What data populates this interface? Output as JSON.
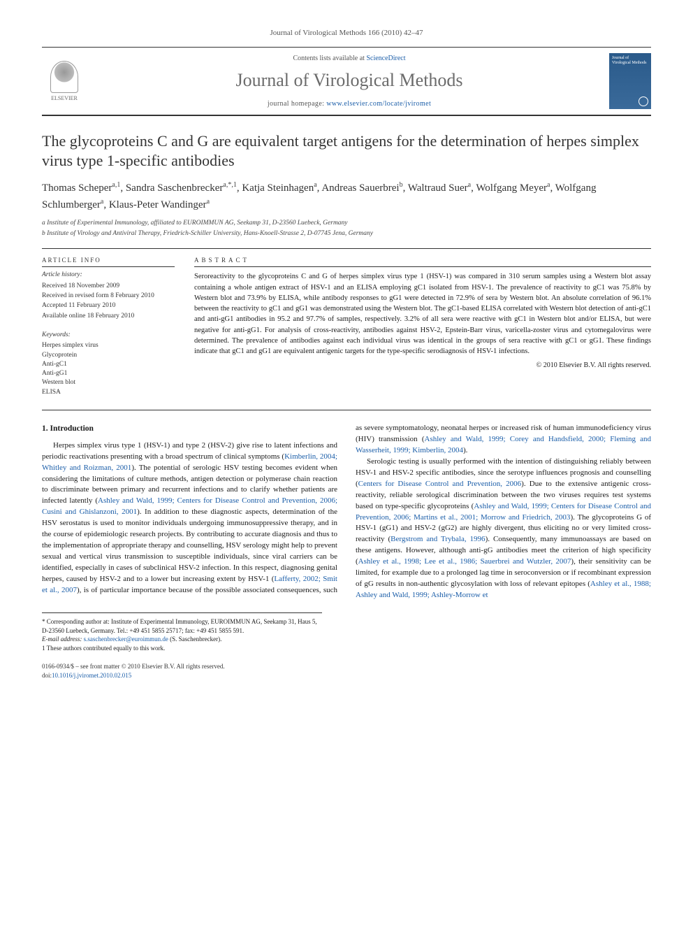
{
  "page_header": "Journal of Virological Methods 166 (2010) 42–47",
  "banner": {
    "contents_prefix": "Contents lists available at ",
    "contents_link": "ScienceDirect",
    "journal_name": "Journal of Virological Methods",
    "homepage_prefix": "journal homepage: ",
    "homepage_url": "www.elsevier.com/locate/jviromet",
    "elsevier_label": "ELSEVIER",
    "cover_title": "Journal of Virological Methods"
  },
  "article": {
    "title": "The glycoproteins C and G are equivalent target antigens for the determination of herpes simplex virus type 1-specific antibodies",
    "authors_html": "Thomas Scheper<sup>a,1</sup>, Sandra Saschenbrecker<sup>a,*,1</sup>, Katja Steinhagen<sup>a</sup>, Andreas Sauerbrei<sup>b</sup>, Waltraud Suer<sup>a</sup>, Wolfgang Meyer<sup>a</sup>, Wolfgang Schlumberger<sup>a</sup>, Klaus-Peter Wandinger<sup>a</sup>",
    "affil_a": "a Institute of Experimental Immunology, affiliated to EUROIMMUN AG, Seekamp 31, D-23560 Luebeck, Germany",
    "affil_b": "b Institute of Virology and Antiviral Therapy, Friedrich-Schiller University, Hans-Knoell-Strasse 2, D-07745 Jena, Germany"
  },
  "meta": {
    "article_info_head": "ARTICLE INFO",
    "history_label": "Article history:",
    "history": [
      "Received 18 November 2009",
      "Received in revised form 8 February 2010",
      "Accepted 11 February 2010",
      "Available online 18 February 2010"
    ],
    "keywords_label": "Keywords:",
    "keywords": [
      "Herpes simplex virus",
      "Glycoprotein",
      "Anti-gC1",
      "Anti-gG1",
      "Western blot",
      "ELISA"
    ]
  },
  "abstract": {
    "head": "ABSTRACT",
    "text": "Seroreactivity to the glycoproteins C and G of herpes simplex virus type 1 (HSV-1) was compared in 310 serum samples using a Western blot assay containing a whole antigen extract of HSV-1 and an ELISA employing gC1 isolated from HSV-1. The prevalence of reactivity to gC1 was 75.8% by Western blot and 73.9% by ELISA, while antibody responses to gG1 were detected in 72.9% of sera by Western blot. An absolute correlation of 96.1% between the reactivity to gC1 and gG1 was demonstrated using the Western blot. The gC1-based ELISA correlated with Western blot detection of anti-gC1 and anti-gG1 antibodies in 95.2 and 97.7% of samples, respectively. 3.2% of all sera were reactive with gC1 in Western blot and/or ELISA, but were negative for anti-gG1. For analysis of cross-reactivity, antibodies against HSV-2, Epstein-Barr virus, varicella-zoster virus and cytomegalovirus were determined. The prevalence of antibodies against each individual virus was identical in the groups of sera reactive with gC1 or gG1. These findings indicate that gC1 and gG1 are equivalent antigenic targets for the type-specific serodiagnosis of HSV-1 infections.",
    "copyright": "© 2010 Elsevier B.V. All rights reserved."
  },
  "body": {
    "section_title": "1. Introduction",
    "para1_pre": "Herpes simplex virus type 1 (HSV-1) and type 2 (HSV-2) give rise to latent infections and periodic reactivations presenting with a broad spectrum of clinical symptoms (",
    "cite1": "Kimberlin, 2004; Whitley and Roizman, 2001",
    "para1_mid1": "). The potential of serologic HSV testing becomes evident when considering the limitations of culture methods, antigen detection or polymerase chain reaction to discriminate between primary and recurrent infections and to clarify whether patients are infected latently (",
    "cite2": "Ashley and Wald, 1999; Centers for Disease Control and Prevention, 2006; Cusini and Ghislanzoni, 2001",
    "para1_mid2": "). In addition to these diagnostic aspects, determination of the HSV serostatus is used to monitor individuals undergoing immunosuppressive therapy, and in the course of epidemiologic research projects. By contributing to accurate diagnosis and thus to the implementation of appropriate therapy and counselling, HSV serology might help to prevent sexual and vertical virus transmission to susceptible individuals, since viral carriers can be identified, especially in cases of subclinical HSV-2 infection. In this respect, diagnosing genital herpes, caused by HSV-2 and to a lower but increasing extent by HSV-1 (",
    "cite3": "Lafferty, 2002; Smit et al., 2007",
    "para1_mid3": "), is of particular importance because of the possible associated consequences, such as severe symptomatology, neonatal herpes or increased risk of human immunodeficiency virus (HIV) transmission (",
    "cite4": "Ashley and Wald, 1999; Corey and Handsfield, 2000; Fleming and Wasserheit, 1999; Kimberlin, 2004",
    "para1_end": ").",
    "para2_pre": "Serologic testing is usually performed with the intention of distinguishing reliably between HSV-1 and HSV-2 specific antibodies, since the serotype influences prognosis and counselling (",
    "cite5": "Centers for Disease Control and Prevention, 2006",
    "para2_mid1": "). Due to the extensive antigenic cross-reactivity, reliable serological discrimination between the two viruses requires test systems based on type-specific glycoproteins (",
    "cite6": "Ashley and Wald, 1999; Centers for Disease Control and Prevention, 2006; Martins et al., 2001; Morrow and Friedrich, 2003",
    "para2_mid2": "). The glycoproteins G of HSV-1 (gG1) and HSV-2 (gG2) are highly divergent, thus eliciting no or very limited cross-reactivity (",
    "cite7": "Bergstrom and Trybala, 1996",
    "para2_mid3": "). Consequently, many immunoassays are based on these antigens. However, although anti-gG antibodies meet the criterion of high specificity (",
    "cite8": "Ashley et al., 1998; Lee et al., 1986; Sauerbrei and Wutzler, 2007",
    "para2_mid4": "), their sensitivity can be limited, for example due to a prolonged lag time in seroconversion or if recombinant expression of gG results in non-authentic glycosylation with loss of relevant epitopes (",
    "cite9": "Ashley et al., 1988; Ashley and Wald, 1999; Ashley-Morrow et",
    "para2_end": ""
  },
  "footnotes": {
    "corr": "* Corresponding author at: Institute of Experimental Immunology, EUROIMMUN AG, Seekamp 31, Haus 5, D-23560 Luebeck, Germany. Tel.: +49 451 5855 25717; fax: +49 451 5855 591.",
    "email_label": "E-mail address: ",
    "email": "s.saschenbrecker@euroimmun.de",
    "email_suffix": " (S. Saschenbrecker).",
    "equal": "1 These authors contributed equally to this work."
  },
  "footer": {
    "line1": "0166-0934/$ – see front matter © 2010 Elsevier B.V. All rights reserved.",
    "doi_label": "doi:",
    "doi": "10.1016/j.jviromet.2010.02.015"
  },
  "colors": {
    "link": "#1a5da8",
    "text": "#1a1a1a",
    "muted": "#555555",
    "journal_grey": "#6b6b6b",
    "rule": "#333333",
    "cover_bg_top": "#2a5a8a",
    "cover_bg_bottom": "#3a6a9a"
  }
}
